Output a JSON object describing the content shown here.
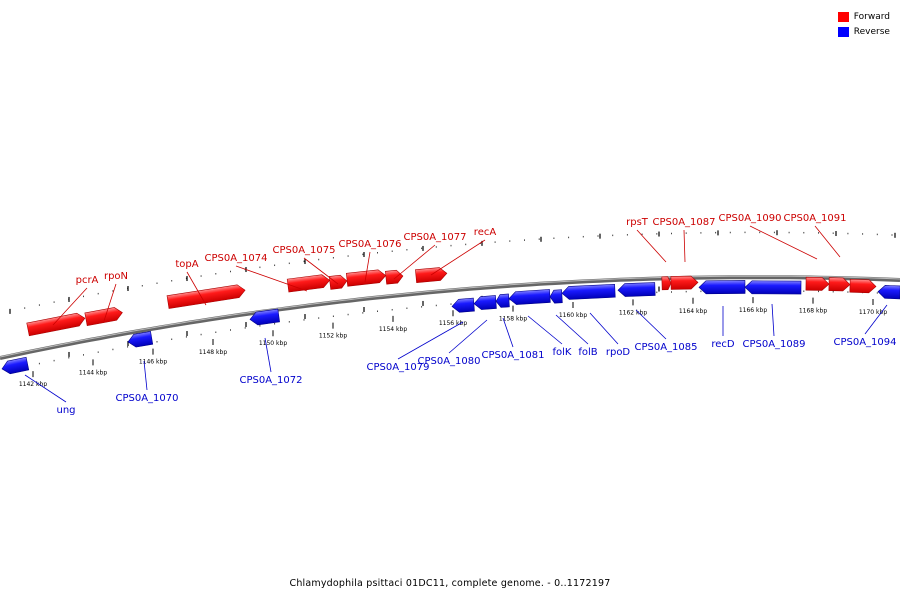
{
  "legend": {
    "forward": {
      "label": "Forward",
      "color": "#ff0000"
    },
    "reverse": {
      "label": "Reverse",
      "color": "#0000ff"
    }
  },
  "caption": "Chlamydophila psittaci 01DC11, complete genome. - 0..1172197",
  "axis": {
    "unit": "kbp",
    "ticks": [
      1142,
      1144,
      1146,
      1148,
      1150,
      1152,
      1154,
      1156,
      1158,
      1160,
      1162,
      1164,
      1166,
      1168,
      1170
    ]
  },
  "genes": {
    "forward": [
      {
        "label": "pcrA"
      },
      {
        "label": "rpoN"
      },
      {
        "label": "topA"
      },
      {
        "label": "CPS0A_1074"
      },
      {
        "label": "CPS0A_1075"
      },
      {
        "label": "CPS0A_1076"
      },
      {
        "label": "CPS0A_1077"
      },
      {
        "label": "recA"
      },
      {
        "label": "rpsT"
      },
      {
        "label": "CPS0A_1087"
      },
      {
        "label": "CPS0A_1090"
      },
      {
        "label": "CPS0A_1091"
      }
    ],
    "reverse": [
      {
        "label": "ung"
      },
      {
        "label": "CPS0A_1070"
      },
      {
        "label": "CPS0A_1072"
      },
      {
        "label": "CPS0A_1079"
      },
      {
        "label": "CPS0A_1080"
      },
      {
        "label": "CPS0A_1081"
      },
      {
        "label": "folK"
      },
      {
        "label": "folB"
      },
      {
        "label": "rpoD"
      },
      {
        "label": "CPS0A_1085"
      },
      {
        "label": "recD"
      },
      {
        "label": "CPS0A_1089"
      },
      {
        "label": "CPS0A_1094"
      }
    ]
  }
}
